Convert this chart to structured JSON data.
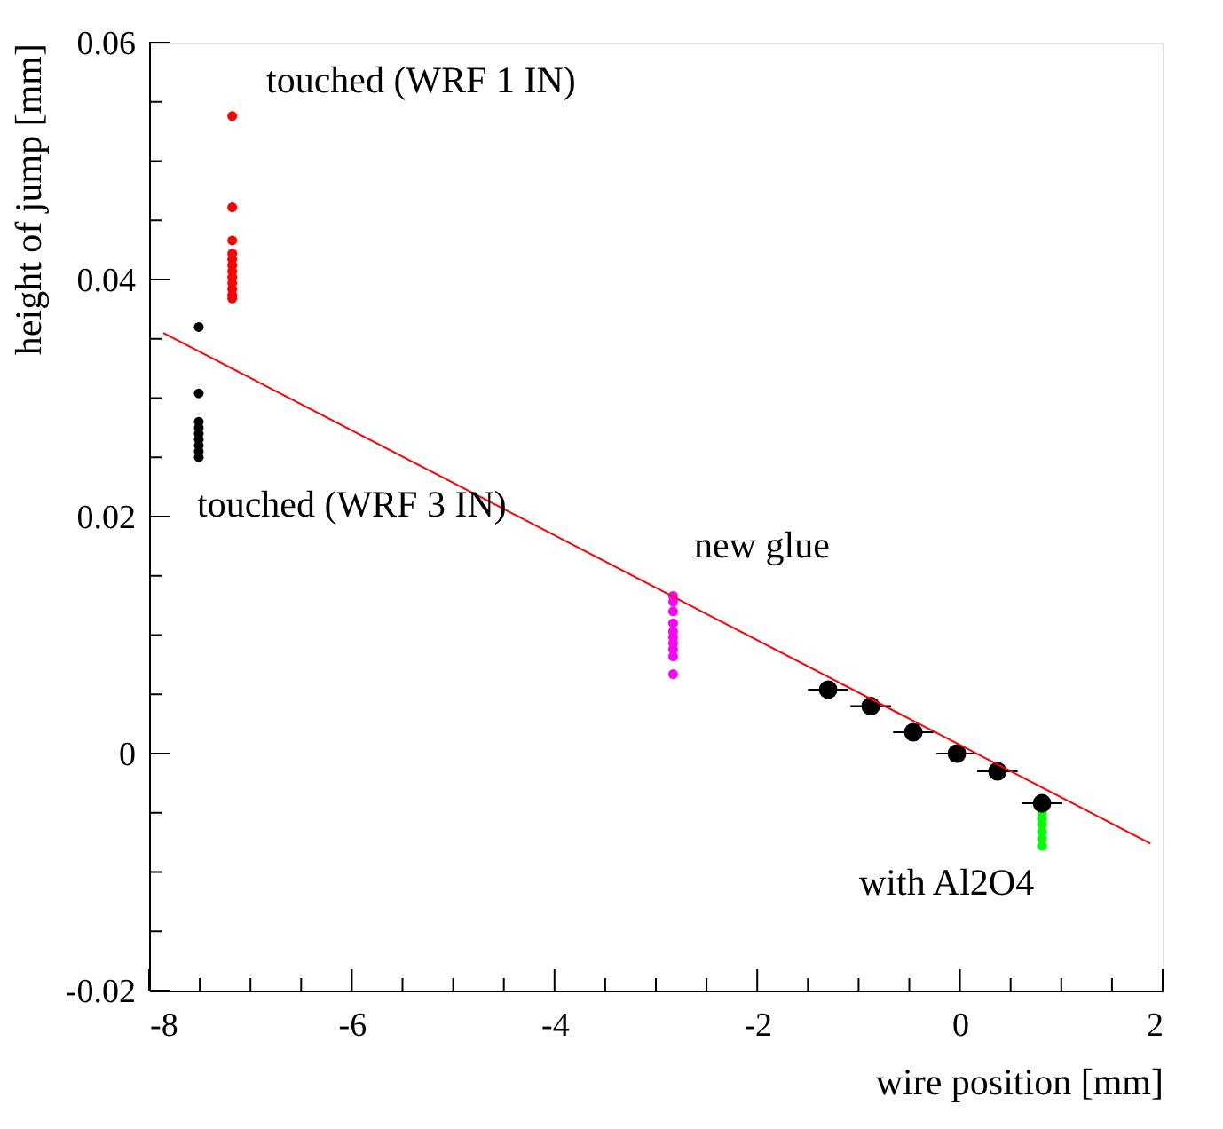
{
  "chart_data": {
    "type": "scatter",
    "xlabel": "wire position [mm]",
    "ylabel": "height of jump [mm]",
    "xlim": [
      -8,
      2
    ],
    "ylim": [
      -0.02,
      0.06
    ],
    "xticks": [
      -8,
      {
        "value": -7.5,
        "label": null
      },
      {
        "value": -7,
        "label": null
      },
      {
        "value": -6.5,
        "label": null
      },
      -6,
      {
        "value": -5.5,
        "label": null
      },
      {
        "value": -5,
        "label": null
      },
      {
        "value": -4.5,
        "label": null
      },
      -4,
      {
        "value": -3.5,
        "label": null
      },
      {
        "value": -3,
        "label": null
      },
      {
        "value": -2.5,
        "label": null
      },
      -2,
      {
        "value": -1.5,
        "label": null
      },
      {
        "value": -1,
        "label": null
      },
      {
        "value": -0.5,
        "label": null
      },
      0,
      {
        "value": 0.5,
        "label": null
      },
      {
        "value": 1,
        "label": null
      },
      {
        "value": 1.5,
        "label": null
      },
      2
    ],
    "yticks": [
      -0.02,
      {
        "value": -0.015,
        "label": null
      },
      {
        "value": -0.01,
        "label": null
      },
      {
        "value": -0.005,
        "label": null
      },
      0,
      {
        "value": 0.005,
        "label": null
      },
      {
        "value": 0.01,
        "label": null
      },
      {
        "value": 0.015,
        "label": null
      },
      0.02,
      {
        "value": 0.025,
        "label": null
      },
      {
        "value": 0.03,
        "label": null
      },
      {
        "value": 0.035,
        "label": null
      },
      0.04,
      {
        "value": 0.045,
        "label": null
      },
      {
        "value": 0.05,
        "label": null
      },
      {
        "value": 0.055,
        "label": null
      },
      0.06
    ],
    "grid": false,
    "marker": "circle",
    "series": [
      {
        "color": "#ff0000",
        "x": [
          -7.18,
          -7.18,
          -7.18,
          -7.18,
          -7.18,
          -7.18,
          -7.18,
          -7.18,
          -7.18,
          -7.18,
          -7.18,
          -7.18
        ],
        "values": [
          0.0538,
          0.0461,
          0.0433,
          0.0422,
          0.0417,
          0.0412,
          0.0407,
          0.0402,
          0.0397,
          0.0392,
          0.0387,
          0.0384
        ]
      },
      {
        "color": "#000000",
        "x": [
          -7.51,
          -7.51,
          -7.51,
          -7.51,
          -7.51,
          -7.51,
          -7.51,
          -7.51,
          -7.51
        ],
        "values": [
          0.036,
          0.0304,
          0.028,
          0.0275,
          0.027,
          0.0265,
          0.026,
          0.0255,
          0.025
        ]
      },
      {
        "color": "#ff00ff",
        "x": [
          -2.83,
          -2.83,
          -2.83,
          -2.83,
          -2.83,
          -2.83,
          -2.83,
          -2.83,
          -2.83,
          -2.83
        ],
        "values": [
          0.0133,
          0.0128,
          0.012,
          0.011,
          0.0103,
          0.0098,
          0.0093,
          0.0088,
          0.0082,
          0.0067
        ]
      },
      {
        "color": "#00ff00",
        "x": [
          0.81,
          0.81,
          0.81,
          0.81,
          0.81,
          0.81
        ],
        "values": [
          -0.005,
          -0.0055,
          -0.006,
          -0.0066,
          -0.0072,
          -0.0078
        ]
      },
      {
        "color": "#000000",
        "x": [
          -1.3,
          -0.88,
          -0.46,
          -0.03,
          0.37,
          0.81
        ],
        "values": [
          0.0054,
          0.004,
          0.0018,
          0.0,
          -0.0015,
          -0.0042
        ],
        "xerrors": [
          0.2,
          0.2,
          0.2,
          0.2,
          0.2,
          0.2
        ]
      },
      {
        "type": "line",
        "color": "#ff0000",
        "marker": "none",
        "x": [
          -7.86,
          1.88
        ],
        "values": [
          0.0355,
          -0.0076
        ]
      }
    ],
    "annotations": [
      "touched (WRF 1 IN)",
      "touched (WRF 3 IN)",
      "new glue",
      "with Al2O4"
    ]
  }
}
